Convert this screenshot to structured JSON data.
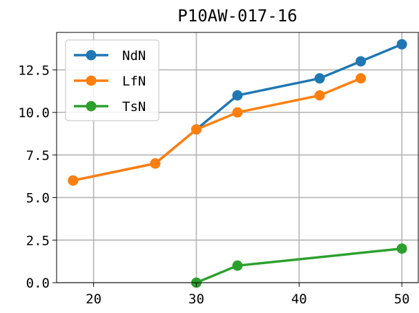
{
  "chart_data": {
    "type": "line",
    "title": "P10AW-017-16",
    "xlabel": "",
    "ylabel": "",
    "xlim": [
      16.4,
      51.6
    ],
    "ylim": [
      0,
      14.7
    ],
    "xticks": [
      20,
      30,
      40,
      50
    ],
    "xtick_labels": [
      "20",
      "30",
      "40",
      "50"
    ],
    "yticks": [
      0,
      2.5,
      5,
      7.5,
      10,
      12.5
    ],
    "ytick_labels": [
      "0.0",
      "2.5",
      "5.0",
      "7.5",
      "10.0",
      "12.5"
    ],
    "grid": true,
    "legend_position": "top-left",
    "series": [
      {
        "name": "NdN",
        "color": "#1f77b4",
        "x": [
          18,
          26,
          30,
          34,
          42,
          46,
          50
        ],
        "y": [
          6,
          7,
          9,
          11,
          12,
          13,
          14
        ]
      },
      {
        "name": "LfN",
        "color": "#ff7f0e",
        "x": [
          18,
          26,
          30,
          34,
          42,
          46
        ],
        "y": [
          6,
          7,
          9,
          10,
          11,
          12
        ]
      },
      {
        "name": "TsN",
        "color": "#2ca02c",
        "x": [
          30,
          34,
          50
        ],
        "y": [
          0,
          1,
          2
        ]
      }
    ]
  }
}
